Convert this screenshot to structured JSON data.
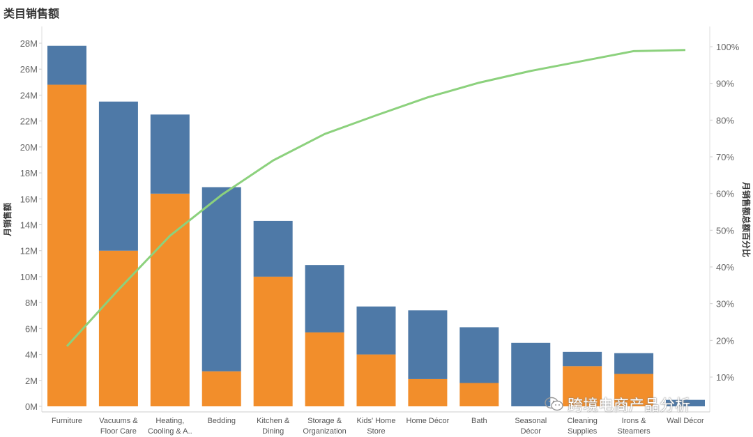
{
  "title": "类目销售额",
  "watermark_text": "跨境电商产品分析",
  "chart_data": {
    "type": "bar",
    "stacked": true,
    "categories": [
      "Furniture",
      "Vacuums & Floor Care",
      "Heating, Cooling & A..",
      "Bedding",
      "Kitchen & Dining",
      "Storage & Organization",
      "Kids' Home Store",
      "Home Décor",
      "Bath",
      "Seasonal Décor",
      "Cleaning Supplies",
      "Irons & Steamers",
      "Wall Décor"
    ],
    "category_lines": [
      [
        "Furniture"
      ],
      [
        "Vacuums &",
        "Floor Care"
      ],
      [
        "Heating,",
        "Cooling & A.."
      ],
      [
        "Bedding"
      ],
      [
        "Kitchen &",
        "Dining"
      ],
      [
        "Storage &",
        "Organization"
      ],
      [
        "Kids' Home",
        "Store"
      ],
      [
        "Home Décor"
      ],
      [
        "Bath"
      ],
      [
        "Seasonal",
        "Décor"
      ],
      [
        "Cleaning",
        "Supplies"
      ],
      [
        "Irons &",
        "Steamers"
      ],
      [
        "Wall Décor"
      ]
    ],
    "series": [
      {
        "color": "#f28e2b",
        "values": [
          24.8,
          12.0,
          16.4,
          2.7,
          10.0,
          5.7,
          4.0,
          2.1,
          1.8,
          0.0,
          3.1,
          2.5,
          0.0
        ]
      },
      {
        "color": "#4e79a7",
        "values": [
          3.0,
          11.5,
          6.1,
          14.2,
          4.3,
          5.2,
          3.7,
          5.3,
          4.3,
          4.9,
          1.1,
          1.6,
          0.5
        ]
      }
    ],
    "cumulative_line": {
      "color": "#8cd17d",
      "values": [
        18.4,
        33.8,
        48.5,
        59.6,
        69.0,
        76.2,
        81.3,
        86.2,
        90.2,
        93.4,
        96.1,
        98.8,
        99.1
      ]
    },
    "ylabel": "月销售额",
    "y2label": "月销售额总额百分比",
    "ylim": [
      0,
      29
    ],
    "y2lim": [
      0,
      106
    ],
    "yticks": [
      "0M",
      "2M",
      "4M",
      "6M",
      "8M",
      "10M",
      "12M",
      "14M",
      "16M",
      "18M",
      "20M",
      "22M",
      "24M",
      "26M",
      "28M"
    ],
    "y2ticks": [
      "10%",
      "20%",
      "30%",
      "40%",
      "50%",
      "60%",
      "70%",
      "80%",
      "90%",
      "100%"
    ]
  }
}
